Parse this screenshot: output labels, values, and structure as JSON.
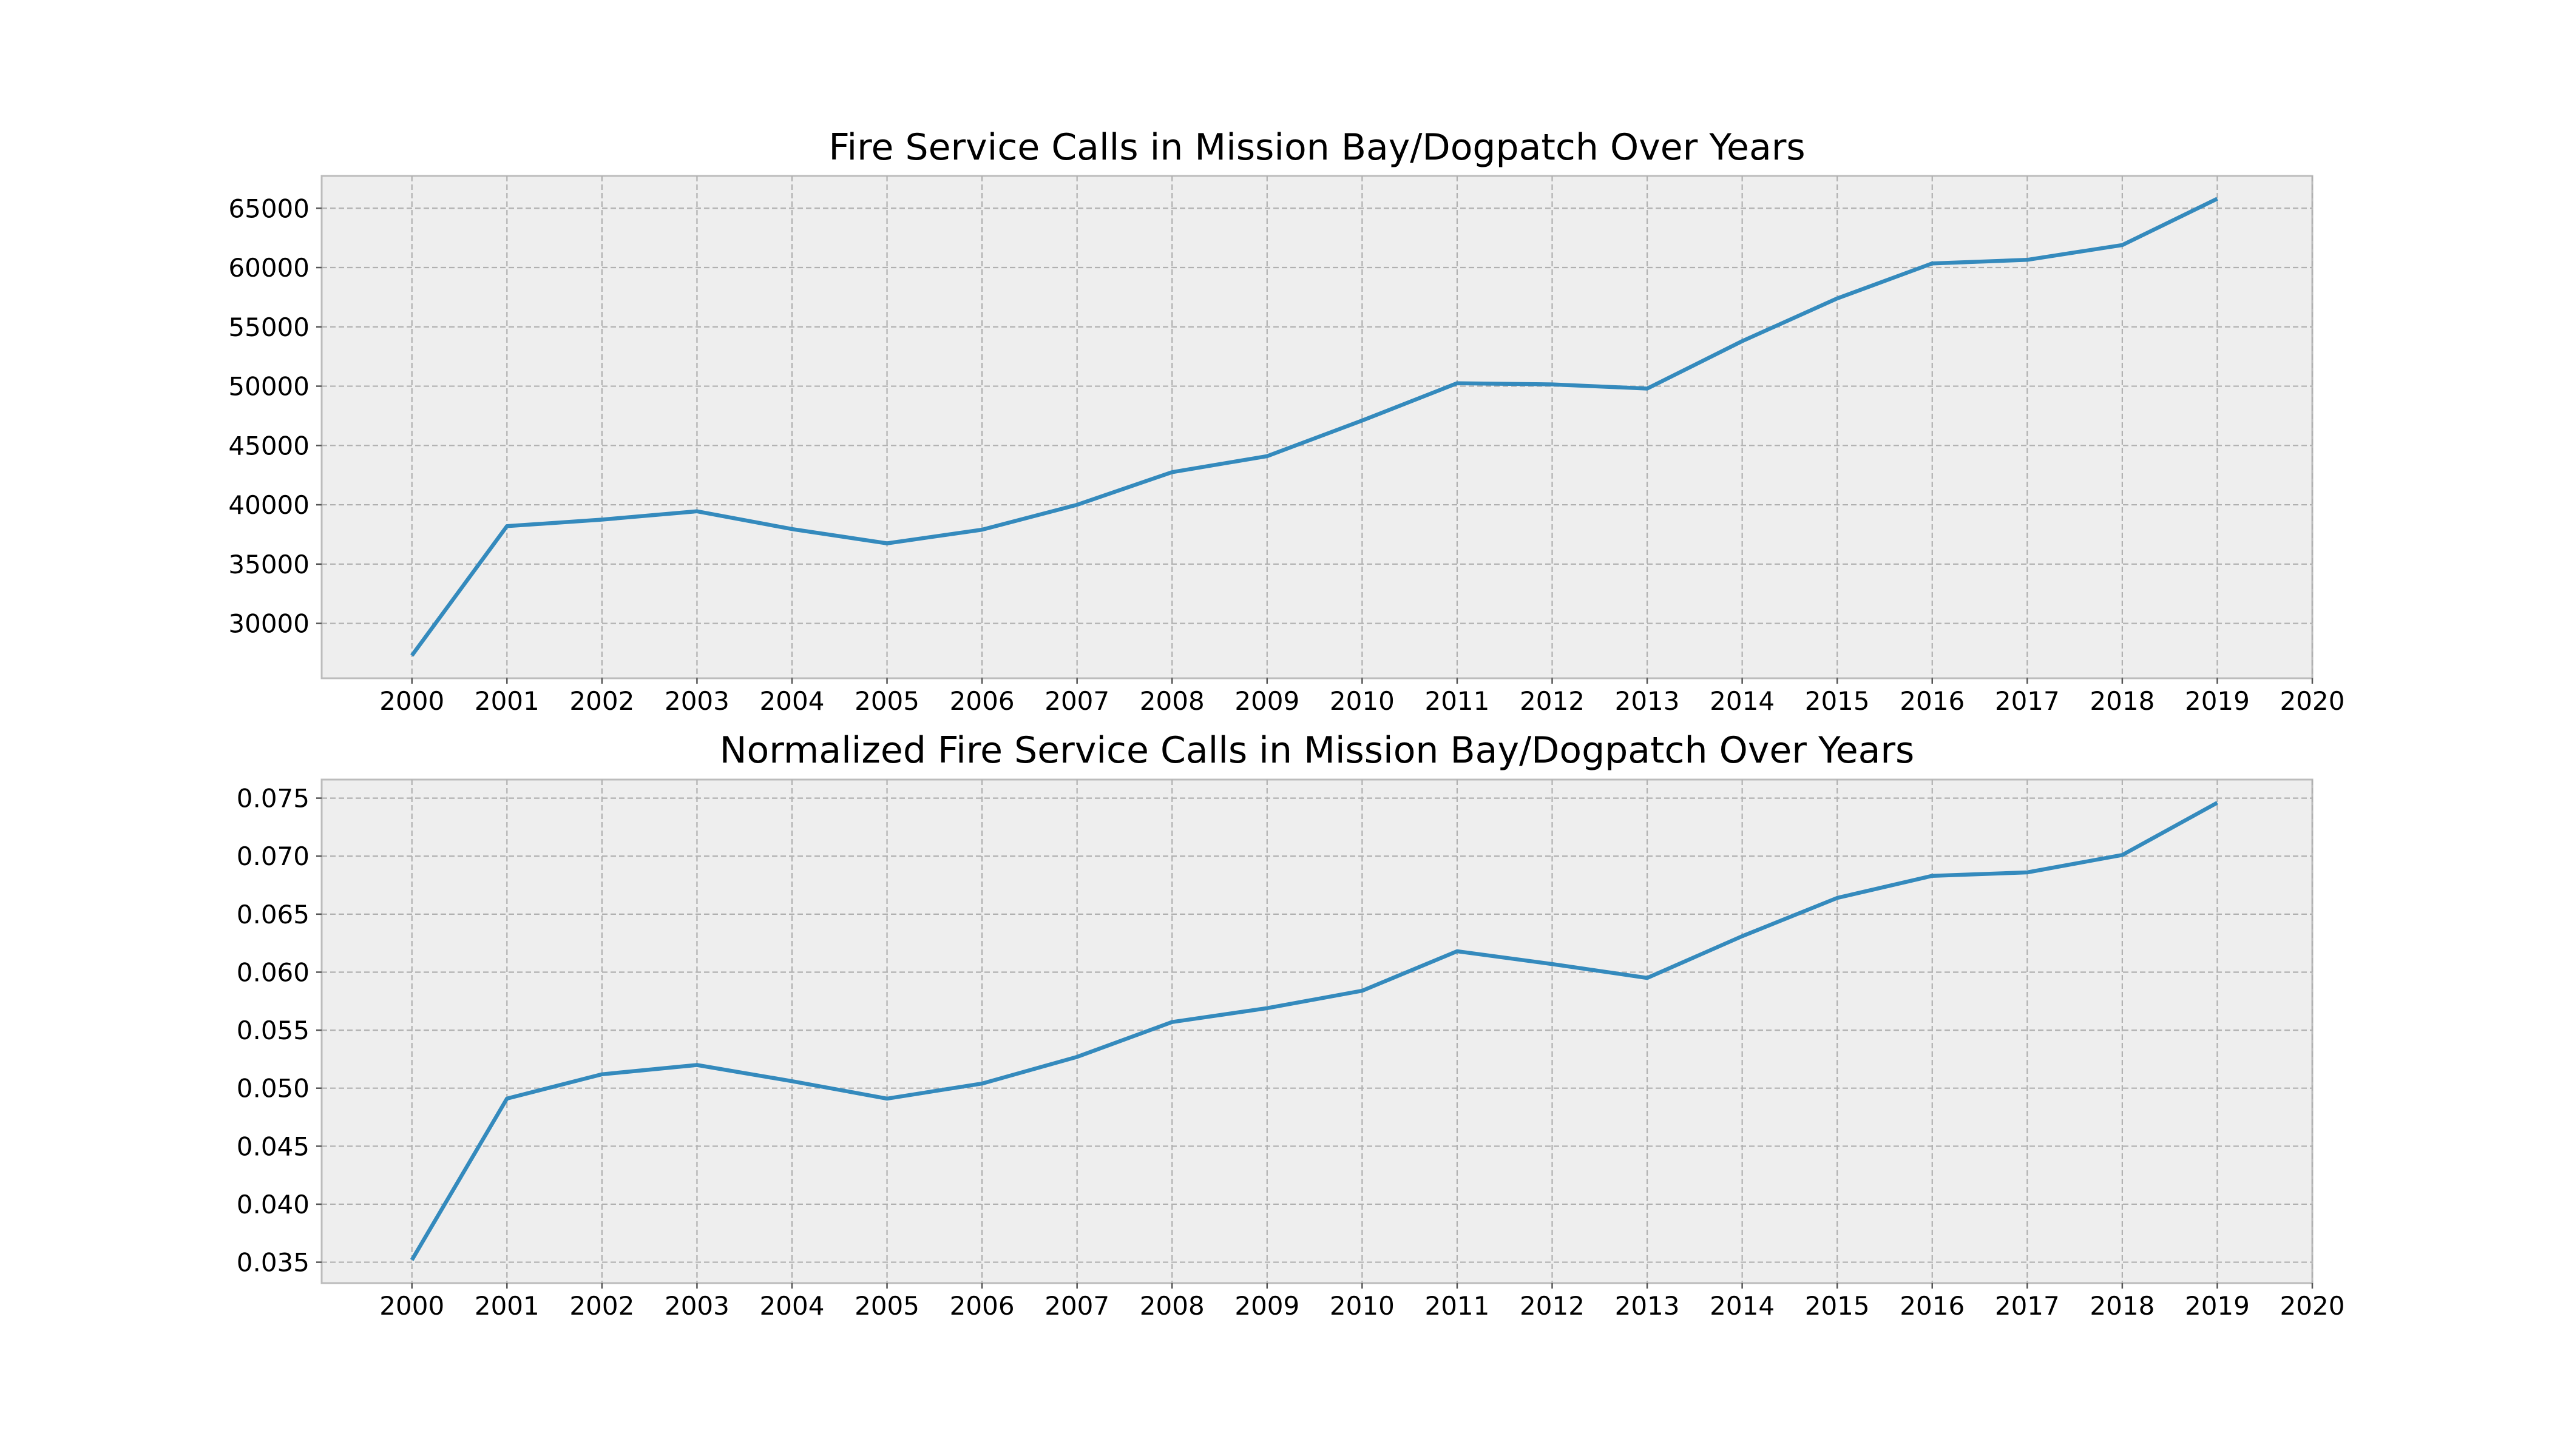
{
  "colors": {
    "background": "#ffffff",
    "plot_background": "#eeeeee",
    "line": "#348abd",
    "grid": "#b0b0b0",
    "frame": "#bcbcbc"
  },
  "chart_data": [
    {
      "type": "line",
      "title": "Fire Service Calls in Mission Bay/Dogpatch Over Years",
      "xlabel": "",
      "ylabel": "",
      "x": [
        2000,
        2001,
        2002,
        2003,
        2004,
        2005,
        2006,
        2007,
        2008,
        2009,
        2010,
        2011,
        2012,
        2013,
        2014,
        2015,
        2016,
        2017,
        2018,
        2019
      ],
      "y": [
        27300,
        38200,
        38750,
        39450,
        37950,
        36750,
        37900,
        40000,
        42750,
        44100,
        47100,
        50250,
        50150,
        49800,
        53800,
        57400,
        60350,
        60650,
        61900,
        65800
      ],
      "xticks": [
        2000,
        2001,
        2002,
        2003,
        2004,
        2005,
        2006,
        2007,
        2008,
        2009,
        2010,
        2011,
        2012,
        2013,
        2014,
        2015,
        2016,
        2017,
        2018,
        2019,
        2020
      ],
      "xtick_labels": [
        "2000",
        "2001",
        "2002",
        "2003",
        "2004",
        "2005",
        "2006",
        "2007",
        "2008",
        "2009",
        "2010",
        "2011",
        "2012",
        "2013",
        "2014",
        "2015",
        "2016",
        "2017",
        "2018",
        "2019",
        "2020"
      ],
      "yticks": [
        30000,
        35000,
        40000,
        45000,
        50000,
        55000,
        60000,
        65000
      ],
      "ytick_labels": [
        "30000",
        "35000",
        "40000",
        "45000",
        "50000",
        "55000",
        "60000",
        "65000"
      ],
      "xlim": [
        1999.05,
        2020
      ],
      "ylim": [
        25375,
        67725
      ],
      "grid": true,
      "legend": "none"
    },
    {
      "type": "line",
      "title": "Normalized Fire Service Calls in Mission Bay/Dogpatch Over Years",
      "xlabel": "",
      "ylabel": "",
      "x": [
        2000,
        2001,
        2002,
        2003,
        2004,
        2005,
        2006,
        2007,
        2008,
        2009,
        2010,
        2011,
        2012,
        2013,
        2014,
        2015,
        2016,
        2017,
        2018,
        2019
      ],
      "y": [
        0.0352,
        0.0491,
        0.0512,
        0.052,
        0.0506,
        0.0491,
        0.0504,
        0.0527,
        0.0557,
        0.0569,
        0.0584,
        0.0618,
        0.0607,
        0.0595,
        0.0631,
        0.0664,
        0.0683,
        0.0686,
        0.0701,
        0.0746
      ],
      "xticks": [
        2000,
        2001,
        2002,
        2003,
        2004,
        2005,
        2006,
        2007,
        2008,
        2009,
        2010,
        2011,
        2012,
        2013,
        2014,
        2015,
        2016,
        2017,
        2018,
        2019,
        2020
      ],
      "xtick_labels": [
        "2000",
        "2001",
        "2002",
        "2003",
        "2004",
        "2005",
        "2006",
        "2007",
        "2008",
        "2009",
        "2010",
        "2011",
        "2012",
        "2013",
        "2014",
        "2015",
        "2016",
        "2017",
        "2018",
        "2019",
        "2020"
      ],
      "yticks": [
        0.035,
        0.04,
        0.045,
        0.05,
        0.055,
        0.06,
        0.065,
        0.07,
        0.075
      ],
      "ytick_labels": [
        "0.035",
        "0.040",
        "0.045",
        "0.050",
        "0.055",
        "0.060",
        "0.065",
        "0.070",
        "0.075"
      ],
      "xlim": [
        1999.05,
        2020
      ],
      "ylim": [
        0.0332,
        0.0766
      ],
      "grid": true,
      "legend": "none"
    }
  ]
}
